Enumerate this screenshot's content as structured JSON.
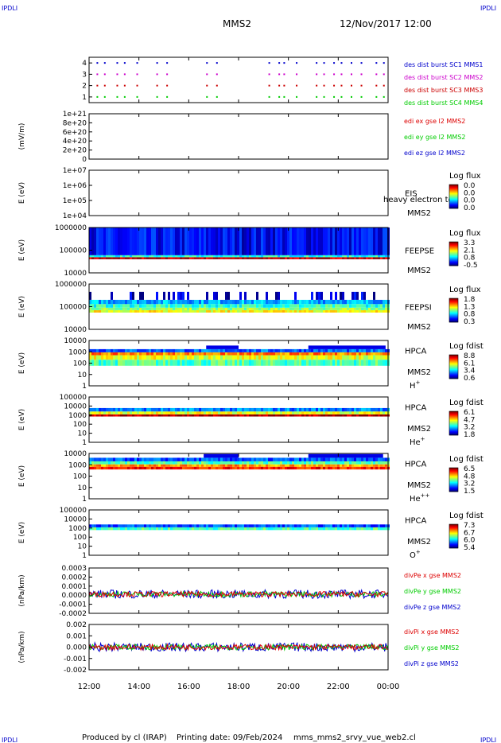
{
  "header": {
    "corner_tag": "IPDLI",
    "spacecraft": "MMS2",
    "datetime": "12/Nov/2017 12:00"
  },
  "footer": {
    "produced_by": "Produced by cl (IRAP)",
    "printing_date": "Printing date: 09/Feb/2024",
    "filename": "mms_mms2_srvy_vue_web2.cl"
  },
  "colors": {
    "mms1": "#0000cc",
    "mms2": "#cc00cc",
    "mms3": "#cc0000",
    "mms4": "#00cc00",
    "red": "#dd0000",
    "green": "#00cc00",
    "blue": "#0000cc"
  },
  "chart_data": [
    {
      "type": "scatter",
      "yticks": [
        "4",
        "3",
        "2",
        "1"
      ],
      "ylim": [
        0.5,
        4.5
      ],
      "legend": [
        {
          "label": "des dist burst SC1 MMS1",
          "color": "#0000cc"
        },
        {
          "label": "des dist burst SC2 MMS2",
          "color": "#cc00cc"
        },
        {
          "label": "des dist burst SC3 MMS3",
          "color": "#cc0000"
        },
        {
          "label": "des dist burst SC4 MMS4",
          "color": "#00cc00"
        }
      ],
      "burst_times_h": [
        12.3,
        12.6,
        13.1,
        13.4,
        13.9,
        14.7,
        15.1,
        16.7,
        17.1,
        19.2,
        19.6,
        19.8,
        20.3,
        21.1,
        21.4,
        21.8,
        22.1,
        22.5,
        22.9,
        23.5,
        23.8
      ]
    },
    {
      "type": "line",
      "ylabel": "(mV/m)",
      "yticks": [
        "1e+21",
        "8e+20",
        "6e+20",
        "4e+20",
        "2e+20",
        "0"
      ],
      "ylim": [
        0,
        1e+21
      ],
      "legend": [
        {
          "label": "edi ex gse l2 MMS2",
          "color": "#dd0000"
        },
        {
          "label": "edi ey gse l2 MMS2",
          "color": "#00cc00"
        },
        {
          "label": "edi ez gse l2 MMS2",
          "color": "#0000cc"
        }
      ],
      "values_all": 0
    },
    {
      "type": "heatmap",
      "ylabel": "E (eV)",
      "yticks": [
        "1e+07",
        "1e+06",
        "1e+05",
        "1e+04"
      ],
      "ylim": [
        10000,
        10000000
      ],
      "instrument": "EIS",
      "sub": "MMS2",
      "overlay_text": "heavy electron to",
      "cb_title": "Log flux",
      "cb_ticks": [
        "0.0",
        "0.0",
        "0.0",
        "0.0"
      ],
      "bands": []
    },
    {
      "type": "heatmap",
      "ylabel": "E (eV)",
      "yticks": [
        "1000000",
        "100000",
        "10000"
      ],
      "ylim": [
        10000,
        1000000
      ],
      "instrument": "FEEPSE",
      "sub": "MMS2",
      "cb_title": "Log flux",
      "cb_ticks": [
        "3.3",
        "2.1",
        "0.8",
        "-0.5"
      ],
      "bands": [
        {
          "from": 40000,
          "to": 49000,
          "level": 0.95
        },
        {
          "from": 49000,
          "to": 60000,
          "level": 0.4
        },
        {
          "from": 60000,
          "to": 1000000,
          "level": 0.12
        }
      ]
    },
    {
      "type": "heatmap",
      "ylabel": "E (eV)",
      "yticks": [
        "1000000",
        "100000",
        "10000"
      ],
      "ylim": [
        10000,
        1000000
      ],
      "instrument": "FEEPSI",
      "sub": "MMS2",
      "cb_title": "Log flux",
      "cb_ticks": [
        "1.8",
        "1.3",
        "0.8",
        "0.3"
      ],
      "bands": [
        {
          "from": 55000,
          "to": 70000,
          "level": 0.62
        },
        {
          "from": 70000,
          "to": 90000,
          "level": 0.52
        },
        {
          "from": 90000,
          "to": 130000,
          "level": 0.42
        },
        {
          "from": 130000,
          "to": 200000,
          "level": 0.3
        },
        {
          "from": 200000,
          "to": 450000,
          "level": 0.08,
          "sparse": true
        }
      ]
    },
    {
      "type": "heatmap",
      "ylabel": "E (eV)",
      "yticks": [
        "10000",
        "1000",
        "100",
        "10",
        "1"
      ],
      "ylim": [
        1,
        20000
      ],
      "instrument": "HPCA",
      "sub": "MMS2",
      "species": "H",
      "species_sup": "+",
      "cb_title": "Log fdist",
      "cb_ticks": [
        "8.8",
        "6.1",
        "3.4",
        "0.6"
      ],
      "bands": [
        {
          "from": 80,
          "to": 300,
          "level": 0.45
        },
        {
          "from": 300,
          "to": 800,
          "level": 0.6
        },
        {
          "from": 800,
          "to": 1500,
          "level": 0.75
        },
        {
          "from": 1500,
          "to": 3000,
          "level": 0.22
        }
      ],
      "hot_intervals_h": [
        [
          16.7,
          18.0
        ],
        [
          20.8,
          23.9
        ]
      ]
    },
    {
      "type": "heatmap",
      "ylabel": "E (eV)",
      "yticks": [
        "100000",
        "10000",
        "1000",
        "100",
        "10",
        "1"
      ],
      "ylim": [
        1,
        100000
      ],
      "instrument": "HPCA",
      "sub": "MMS2",
      "species": "He",
      "species_sup": "+",
      "cb_title": "Log fdist",
      "cb_ticks": [
        "6.1",
        "4.7",
        "3.2",
        "1.8"
      ],
      "bands": [
        {
          "from": 700,
          "to": 1200,
          "level": 0.95
        },
        {
          "from": 1200,
          "to": 2500,
          "level": 0.6
        },
        {
          "from": 2500,
          "to": 6000,
          "level": 0.25
        }
      ]
    },
    {
      "type": "heatmap",
      "ylabel": "E (eV)",
      "yticks": [
        "10000",
        "1000",
        "100",
        "10",
        "1"
      ],
      "ylim": [
        1,
        15000
      ],
      "instrument": "HPCA",
      "sub": "MMS2",
      "species": "He",
      "species_sup": "++",
      "cb_title": "Log fdist",
      "cb_ticks": [
        "6.5",
        "4.8",
        "3.2",
        "1.5"
      ],
      "bands": [
        {
          "from": 500,
          "to": 900,
          "level": 0.85
        },
        {
          "from": 900,
          "to": 1500,
          "level": 0.72
        },
        {
          "from": 1500,
          "to": 2800,
          "level": 0.45
        },
        {
          "from": 2800,
          "to": 6000,
          "level": 0.2
        }
      ],
      "hot_intervals_h": [
        [
          16.6,
          18.0
        ],
        [
          20.8,
          23.8
        ]
      ]
    },
    {
      "type": "heatmap",
      "ylabel": "E (eV)",
      "yticks": [
        "100000",
        "10000",
        "1000",
        "100",
        "10",
        "1"
      ],
      "ylim": [
        1,
        100000
      ],
      "instrument": "HPCA",
      "sub": "MMS2",
      "species": "O",
      "species_sup": "+",
      "cb_title": "Log fdist",
      "cb_ticks": [
        "7.3",
        "6.7",
        "6.0",
        "5.4"
      ],
      "bands": [
        {
          "from": 600,
          "to": 1200,
          "level": 0.45
        },
        {
          "from": 1200,
          "to": 2500,
          "level": 0.2
        }
      ]
    },
    {
      "type": "line",
      "ylabel": "(nPa/km)",
      "yticks": [
        "0.0003",
        "0.0002",
        "0.0001",
        "0.0000",
        "-0.0001",
        "-0.0002"
      ],
      "ylim": [
        -0.00022,
        0.0003
      ],
      "legend": [
        {
          "label": "divPe x gse MMS2",
          "color": "#dd0000"
        },
        {
          "label": "divPe y gse MMS2",
          "color": "#00cc00"
        },
        {
          "label": "divPe z gse MMS2",
          "color": "#0000cc"
        }
      ]
    },
    {
      "type": "line",
      "ylabel": "(nPa/km)",
      "yticks": [
        "0.002",
        "0.001",
        "0.000",
        "-0.001",
        "-0.002"
      ],
      "ylim": [
        -0.0022,
        0.0022
      ],
      "legend": [
        {
          "label": "divPi x gse MMS2",
          "color": "#dd0000"
        },
        {
          "label": "divPi y gse MMS2",
          "color": "#00cc00"
        },
        {
          "label": "divPi z gse MMS2",
          "color": "#0000cc"
        }
      ]
    }
  ],
  "time_axis": {
    "start_h": 12,
    "end_h": 24,
    "labels": [
      "12:00",
      "14:00",
      "16:00",
      "18:00",
      "20:00",
      "22:00",
      "00:00"
    ]
  }
}
